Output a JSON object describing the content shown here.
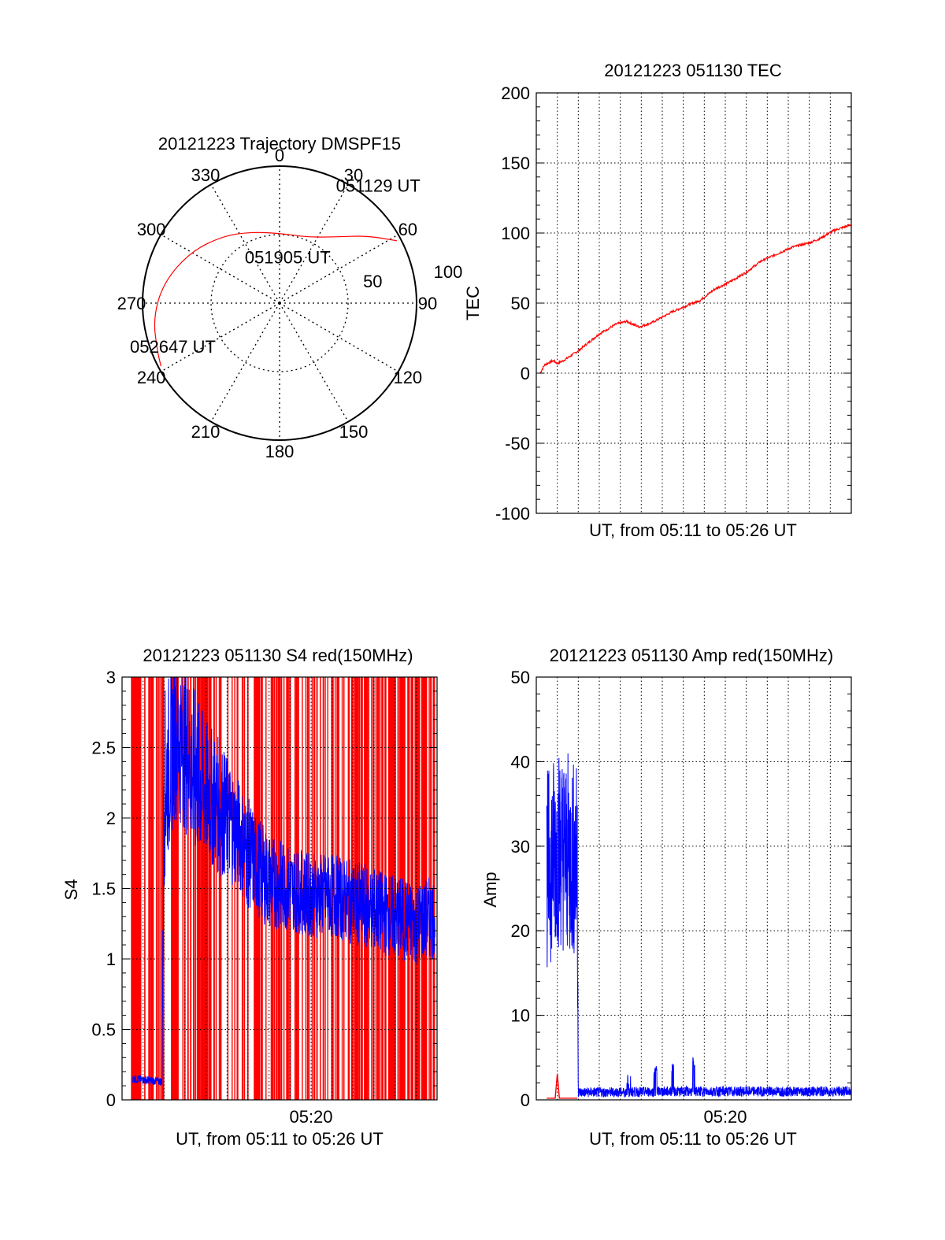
{
  "colors": {
    "red": "#ff0000",
    "blue": "#0000ff",
    "axis": "#000000",
    "grid": "#000000",
    "background": "#ffffff"
  },
  "chart_data": [
    {
      "id": "trajectory",
      "type": "polar",
      "title": "20121223 Trajectory DMSPF15",
      "azimuth_labels": [
        "0",
        "30",
        "60",
        "90",
        "120",
        "150",
        "180",
        "210",
        "240",
        "270",
        "300",
        "330"
      ],
      "radius_labels": [
        "50",
        "100"
      ],
      "rlim": [
        0,
        100
      ],
      "grid": true,
      "line_color": "#ff0000",
      "track": [
        {
          "az": 62,
          "r": 97
        },
        {
          "az": 52,
          "r": 80
        },
        {
          "az": 40,
          "r": 63
        },
        {
          "az": 22,
          "r": 52
        },
        {
          "az": 0,
          "r": 51
        },
        {
          "az": -22,
          "r": 56
        },
        {
          "az": -40,
          "r": 64
        },
        {
          "az": -60,
          "r": 75
        },
        {
          "az": -80,
          "r": 86
        },
        {
          "az": -97,
          "r": 93
        },
        {
          "az": -112,
          "r": 96
        },
        {
          "az": -118,
          "r": 98
        }
      ],
      "annotations": [
        {
          "text": "051129 UT",
          "az": 40,
          "r": 112
        },
        {
          "text": "051905 UT",
          "az": 10,
          "r": 34
        },
        {
          "text": "052647 UT",
          "az": -112,
          "r": 84
        }
      ]
    },
    {
      "id": "tec",
      "type": "line",
      "title": "20121223 051130 TEC",
      "xlabel": "UT, from 05:11 to 05:26 UT",
      "ylabel": "TEC",
      "xlim": [
        0,
        15
      ],
      "ylim": [
        -100,
        200
      ],
      "yticks": [
        "200",
        "150",
        "100",
        "50",
        "0",
        "-50",
        "-100"
      ],
      "xtick_labels": [],
      "grid": true,
      "series": [
        {
          "color": "#ff0000",
          "x": [
            0.18,
            0.4,
            0.8,
            1.0,
            1.3,
            2.0,
            3.0,
            3.8,
            4.3,
            4.9,
            5.5,
            6.5,
            7.3,
            7.8,
            8.5,
            9.2,
            10.0,
            10.7,
            11.3,
            12.2,
            13.0,
            13.5,
            14.2,
            15.0
          ],
          "y": [
            0,
            6,
            9,
            7,
            9,
            16,
            28,
            35,
            37,
            33,
            36,
            44,
            49,
            52,
            60,
            65,
            72,
            80,
            84,
            90,
            93,
            96,
            102,
            106
          ]
        }
      ]
    },
    {
      "id": "s4",
      "type": "line",
      "title": "20121223 051130 S4 red(150MHz)",
      "xlabel": "UT, from 05:11 to 05:26 UT",
      "ylabel": "S4",
      "xlim": [
        0,
        15
      ],
      "ylim": [
        0,
        3
      ],
      "yticks": [
        "3",
        "2.5",
        "2",
        "1.5",
        "1",
        "0.5",
        "0"
      ],
      "xtick_labels": [
        {
          "label": "05:20",
          "x": 9.0
        }
      ],
      "grid": true,
      "series": [
        {
          "name": "",
          "color": "#ff0000",
          "style": "dense vertical spikes from 0 to 3",
          "x": [
            0.5,
            0.8,
            1.6,
            2.2,
            3.1,
            4.0,
            4.8,
            5.5,
            6.2,
            7.0,
            7.6,
            8.3,
            9.0,
            9.6,
            10.3,
            11.0,
            11.6,
            12.3,
            13.0,
            13.6,
            14.2,
            14.8
          ],
          "y": [
            3,
            3,
            3,
            3,
            3,
            3,
            3,
            3,
            3,
            3,
            3,
            3,
            3,
            3,
            3,
            3,
            3,
            3,
            3,
            3,
            3,
            3
          ]
        },
        {
          "name": "",
          "color": "#0000ff",
          "x": [
            0.5,
            1.9,
            2.0,
            2.5,
            3.0,
            3.5,
            4.0,
            4.5,
            5.0,
            5.5,
            6.0,
            6.5,
            7.0,
            8.0,
            9.0,
            10.0,
            11.0,
            12.0,
            13.0,
            14.0,
            14.9
          ],
          "y": [
            0.15,
            0.13,
            2.2,
            2.6,
            2.5,
            2.3,
            2.2,
            2.1,
            2.0,
            1.9,
            1.75,
            1.65,
            1.55,
            1.5,
            1.45,
            1.45,
            1.4,
            1.35,
            1.3,
            1.25,
            1.3
          ],
          "noise": [
            0.03,
            0.03,
            0.7,
            0.6,
            0.6,
            0.6,
            0.5,
            0.5,
            0.45,
            0.4,
            0.4,
            0.35,
            0.35,
            0.3,
            0.3,
            0.3,
            0.3,
            0.3,
            0.3,
            0.3,
            0.3
          ]
        }
      ]
    },
    {
      "id": "amp",
      "type": "line",
      "title": "20121223 051130 Amp red(150MHz)",
      "xlabel": "UT, from 05:11 to 05:26 UT",
      "ylabel": "Amp",
      "xlim": [
        0,
        15
      ],
      "ylim": [
        0,
        50
      ],
      "yticks": [
        "50",
        "40",
        "30",
        "20",
        "10",
        "0"
      ],
      "xtick_labels": [
        {
          "label": "05:20",
          "x": 9.0
        }
      ],
      "grid": true,
      "series": [
        {
          "name": "",
          "color": "#0000ff",
          "x": [
            0.5,
            1.0,
            1.5,
            1.95,
            2.0,
            4.0,
            6.0,
            8.0,
            10.0,
            12.0,
            14.0,
            15.0
          ],
          "y": [
            27,
            30,
            29,
            28,
            0.9,
            0.9,
            1.0,
            1.0,
            1.0,
            1.0,
            1.0,
            1.0
          ],
          "noise": [
            12,
            12,
            12,
            12,
            0.6,
            0.6,
            0.6,
            0.6,
            0.6,
            0.6,
            0.6,
            0.6
          ]
        },
        {
          "name": "",
          "color": "#ff0000",
          "x": [
            0.5,
            0.9,
            1.0,
            1.1,
            1.95
          ],
          "y": [
            0.2,
            0.2,
            3.1,
            0.2,
            0.2
          ]
        }
      ]
    }
  ]
}
